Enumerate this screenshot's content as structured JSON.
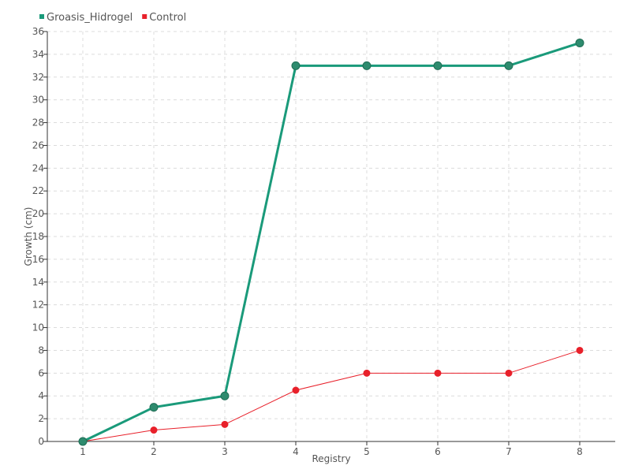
{
  "chart_data": {
    "type": "line",
    "title": "",
    "xlabel": "Registry",
    "ylabel": "Growth (cm)",
    "x": [
      1,
      2,
      3,
      4,
      5,
      6,
      7,
      8
    ],
    "x_tick_labels": [
      "1",
      "2",
      "3",
      "4",
      "5",
      "6",
      "7",
      "8"
    ],
    "xlim": [
      0.5,
      8.5
    ],
    "ylim": [
      0,
      36
    ],
    "y_ticks": [
      0,
      2,
      4,
      6,
      8,
      10,
      12,
      14,
      16,
      18,
      20,
      22,
      24,
      26,
      28,
      30,
      32,
      34,
      36
    ],
    "grid": true,
    "legend_position": "top-left",
    "series": [
      {
        "name": "Groasis_Hidrogel",
        "color": "#1a9a7a",
        "marker_color": "#2e8b6e",
        "values": [
          0,
          3,
          4,
          33,
          33,
          33,
          33,
          35
        ]
      },
      {
        "name": "Control",
        "color": "#e8202a",
        "marker_color": "#e8202a",
        "values": [
          0,
          1,
          1.5,
          4.5,
          6,
          6,
          6,
          8
        ]
      }
    ]
  }
}
